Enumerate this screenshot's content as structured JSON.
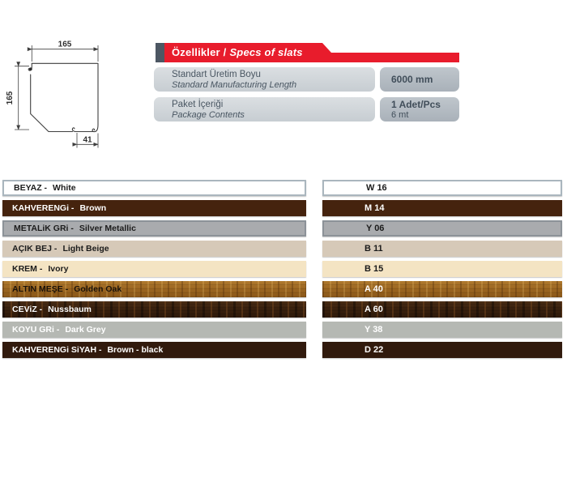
{
  "accent_colors": {
    "red": "#e81c2c",
    "slate": "#4d5763"
  },
  "drawing": {
    "width_label": "165",
    "height_label": "165",
    "slot_label": "41"
  },
  "header": {
    "title_tr": "Özellikler /",
    "title_en": "Specs of slats"
  },
  "spec_rows": [
    {
      "label_tr": "Standart Üretim Boyu",
      "label_en": "Standard Manufacturing Length",
      "values": [
        "6000 mm"
      ]
    },
    {
      "label_tr": "Paket İçeriği",
      "label_en": "Package Contents",
      "values": [
        "1 Adet/Pcs",
        "6 mt"
      ]
    }
  ],
  "color_rows": [
    {
      "name_tr": "BEYAZ -",
      "name_en": "White",
      "code": "W 16",
      "bg": "#ffffff",
      "fg": "#1b1b1b",
      "code_fg": "#1b1b1b",
      "border": "#aab6be",
      "texture": null
    },
    {
      "name_tr": "KAHVERENGi -",
      "name_en": "Brown",
      "code": "M 14",
      "bg": "#45230e",
      "fg": "#ffffff",
      "code_fg": "#ffffff",
      "border": null,
      "texture": null
    },
    {
      "name_tr": "METALiK GRi -",
      "name_en": "Silver Metallic",
      "code": "Y 06",
      "bg": "#a9abae",
      "fg": "#1b1b1b",
      "code_fg": "#1b1b1b",
      "border": "#8c9298",
      "texture": null
    },
    {
      "name_tr": "AÇIK BEJ -",
      "name_en": "Light Beige",
      "code": "B 11",
      "bg": "#d6c9b8",
      "fg": "#1b1b1b",
      "code_fg": "#1b1b1b",
      "border": null,
      "texture": null
    },
    {
      "name_tr": "KREM -",
      "name_en": "Ivory",
      "code": "B 15",
      "bg": "#f4e4c3",
      "fg": "#1b1b1b",
      "code_fg": "#1b1b1b",
      "border": null,
      "texture": null
    },
    {
      "name_tr": "ALTIN MEŞE -",
      "name_en": "Golden Oak",
      "code": "A 40",
      "bg": null,
      "fg": "#191109",
      "code_fg": "#ffffff",
      "border": null,
      "texture": "golden-oak"
    },
    {
      "name_tr": "CEViZ -",
      "name_en": "Nussbaum",
      "code": "A 60",
      "bg": null,
      "fg": "#ffffff",
      "code_fg": "#ffffff",
      "border": null,
      "texture": "walnut"
    },
    {
      "name_tr": "KOYU GRi -",
      "name_en": "Dark Grey",
      "code": "Y 38",
      "bg": "#b5b8b3",
      "fg": "#ffffff",
      "code_fg": "#ffffff",
      "border": null,
      "texture": null
    },
    {
      "name_tr": "KAHVERENGi SiYAH -",
      "name_en": "Brown - black",
      "code": "D 22",
      "bg": "#311a0d",
      "fg": "#ffffff",
      "code_fg": "#ffffff",
      "border": null,
      "texture": null
    }
  ]
}
